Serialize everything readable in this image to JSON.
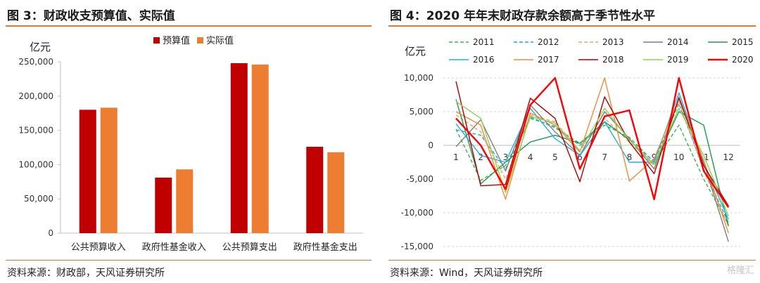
{
  "left": {
    "title": "图 3：财政收支预算值、实际值",
    "source": "资料来源：财政部，天风证券研究所"
  },
  "right": {
    "title": "图 4：2020 年年末财政存款余额高于季节性水平",
    "source": "资料来源：Wind，天风证券研究所"
  },
  "watermark": "格隆汇",
  "colors": {
    "accent": "#e8772e",
    "budget": "#c00000",
    "actual": "#ed7d31"
  },
  "chart_data": [
    {
      "type": "bar",
      "ylabel": "亿元",
      "ylim": [
        0,
        250000
      ],
      "yticks": [
        0,
        50000,
        100000,
        150000,
        200000,
        250000
      ],
      "ytick_labels": [
        "0",
        "50,000",
        "100,000",
        "150,000",
        "200,000",
        "250,000"
      ],
      "categories": [
        "公共预算收入",
        "政府性基金收入",
        "公共预算支出",
        "政府性基金支出"
      ],
      "series": [
        {
          "name": "预算值",
          "color": "#c00000",
          "values": [
            180000,
            81000,
            248000,
            126000
          ]
        },
        {
          "name": "实际值",
          "color": "#ed7d31",
          "values": [
            183000,
            93000,
            246000,
            118000
          ]
        }
      ],
      "legend": "top",
      "grid": false
    },
    {
      "type": "line",
      "ylabel": "亿元",
      "ylim": [
        -15000,
        10000
      ],
      "yticks": [
        10000,
        5000,
        0,
        -5000,
        -10000,
        -15000
      ],
      "ytick_labels": [
        "10,000",
        "5,000",
        "0",
        "-5,000",
        "-10,000",
        "-15,000"
      ],
      "x": [
        1,
        2,
        3,
        4,
        5,
        6,
        7,
        8,
        9,
        10,
        11,
        12
      ],
      "xtick_labels": [
        "1",
        "2",
        "3",
        "4",
        "5",
        "6",
        "7",
        "8",
        "9",
        "10",
        "11",
        "12"
      ],
      "grid": true,
      "legend": "top",
      "series": [
        {
          "name": "2011",
          "color": "#3bb54a",
          "dash": true,
          "values": [
            2400,
            -5200,
            -3000,
            4200,
            2600,
            300,
            3000,
            1200,
            -2500,
            3000,
            -5000,
            -11800
          ]
        },
        {
          "name": "2012",
          "color": "#1fa5dc",
          "dash": true,
          "values": [
            2300,
            1500,
            -3500,
            4000,
            2800,
            0,
            3500,
            800,
            -2400,
            6200,
            -3500,
            -11500
          ]
        },
        {
          "name": "2013",
          "color": "#f4a263",
          "dash": true,
          "values": [
            4500,
            2000,
            -5000,
            4500,
            3500,
            -800,
            4000,
            500,
            -3000,
            6500,
            -3800,
            -12000
          ]
        },
        {
          "name": "2014",
          "color": "#7f7f7f",
          "dash": false,
          "values": [
            -200,
            3800,
            -3800,
            6000,
            2000,
            -1500,
            5000,
            1000,
            -3500,
            7200,
            -2500,
            -14300
          ]
        },
        {
          "name": "2015",
          "color": "#1e9e4a",
          "dash": false,
          "values": [
            6800,
            -5700,
            -2500,
            500,
            1500,
            300,
            3500,
            800,
            -2800,
            5000,
            3000,
            -12000
          ]
        },
        {
          "name": "2016",
          "color": "#23b0e0",
          "dash": false,
          "values": [
            3200,
            -1500,
            -2500,
            5500,
            1000,
            -1500,
            3500,
            -2500,
            -2500,
            7800,
            -2500,
            -11000
          ]
        },
        {
          "name": "2017",
          "color": "#f08b3c",
          "dash": false,
          "values": [
            5000,
            3000,
            -8000,
            4800,
            3000,
            -1000,
            10000,
            -5300,
            -2000,
            7000,
            -2200,
            -13000
          ]
        },
        {
          "name": "2018",
          "color": "#b00000",
          "dash": false,
          "values": [
            9500,
            -6000,
            -5800,
            7000,
            4000,
            -5400,
            7200,
            500,
            -4200,
            7000,
            -3000,
            -9000
          ]
        },
        {
          "name": "2019",
          "color": "#8fd14f",
          "dash": false,
          "values": [
            6500,
            4000,
            -7000,
            4300,
            3300,
            -800,
            5500,
            800,
            -2800,
            5500,
            -1500,
            -10500
          ]
        },
        {
          "name": "2020",
          "color": "#ff0000",
          "dash": false,
          "values": [
            4000,
            0,
            -6500,
            6000,
            10000,
            -3500,
            4300,
            5200,
            -8000,
            10000,
            -3800,
            -9200
          ]
        }
      ]
    }
  ]
}
